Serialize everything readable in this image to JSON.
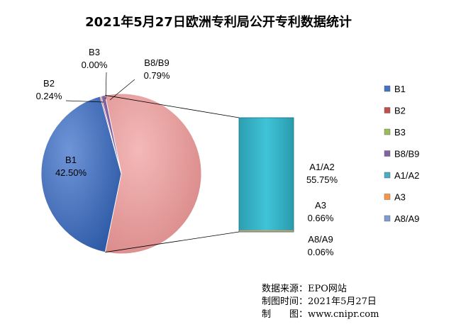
{
  "chart_data": {
    "type": "pie",
    "title": "2021年5月27日欧洲专利局公开专利数据统计",
    "categories": [
      "B1",
      "B2",
      "B3",
      "B8/B9",
      "A1/A2",
      "A3",
      "A8/A9"
    ],
    "values": [
      42.5,
      0.24,
      0.0,
      0.79,
      55.75,
      0.66,
      0.06
    ],
    "value_labels": [
      "42.50%",
      "0.24%",
      "0.00%",
      "0.79%",
      "55.75%",
      "0.66%",
      "0.06%"
    ],
    "unit": "%",
    "colors": [
      "#4472c4",
      "#c0504d",
      "#9bbb59",
      "#8064a2",
      "#4bacc6",
      "#f79646",
      "#7f9ccf"
    ],
    "legend_position": "right",
    "style": "pie-of-bar",
    "bar_categories": [
      "A1/A2",
      "A3",
      "A8/A9"
    ]
  },
  "footer": {
    "source_line": "数据来源：EPO网站",
    "date_line": "制图时间：2021年5月27日",
    "maker_line": "制　　图：www.cnipr.com"
  }
}
